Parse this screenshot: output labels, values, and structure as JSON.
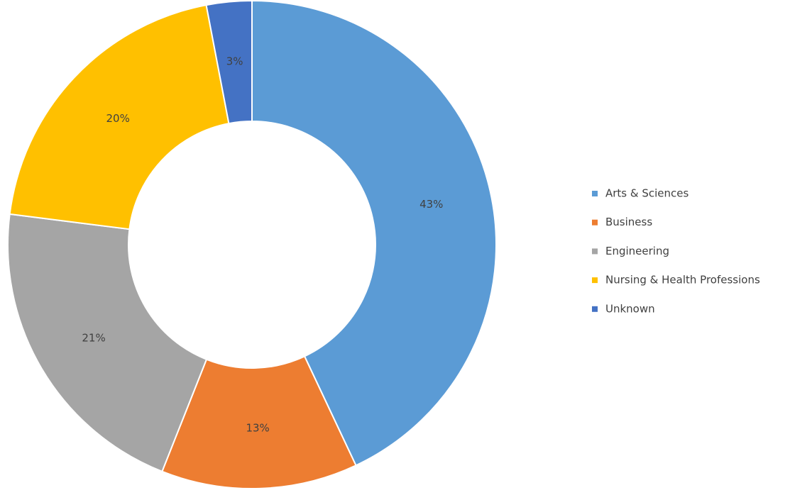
{
  "chart_data": {
    "type": "donut",
    "categories": [
      "Arts & Sciences",
      "Business",
      "Engineering",
      "Nursing & Health Professions",
      "Unknown"
    ],
    "values": [
      43,
      13,
      21,
      20,
      3
    ],
    "value_labels": [
      "43%",
      "13%",
      "21%",
      "20%",
      "3%"
    ],
    "colors": [
      "#5b9bd5",
      "#ed7d31",
      "#a5a5a5",
      "#ffc000",
      "#4472c4"
    ],
    "legend": "right"
  }
}
